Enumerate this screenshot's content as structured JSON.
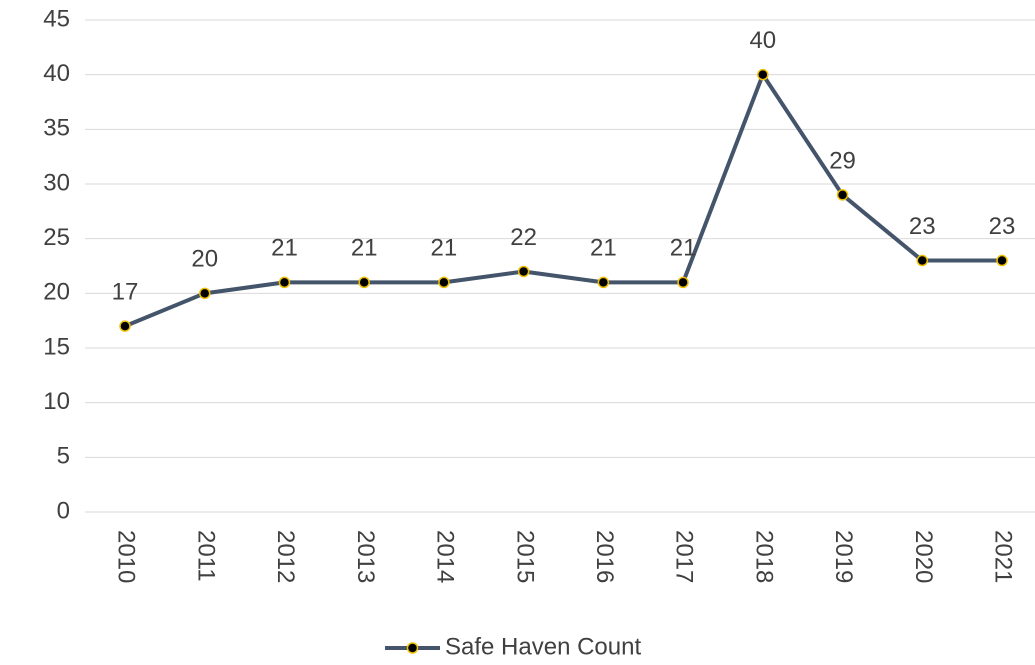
{
  "chart_data": {
    "type": "line",
    "categories": [
      "2010",
      "2011",
      "2012",
      "2013",
      "2014",
      "2015",
      "2016",
      "2017",
      "2018",
      "2019",
      "2020",
      "2021"
    ],
    "series": [
      {
        "name": "Safe Haven Count",
        "color": "#44546a",
        "marker_fill": "#000000",
        "marker_edge": "#f0c000",
        "values": [
          17,
          20,
          21,
          21,
          21,
          22,
          21,
          21,
          40,
          29,
          23,
          23
        ]
      }
    ],
    "ylim": [
      0,
      45
    ],
    "yticks": [
      0,
      5,
      10,
      15,
      20,
      25,
      30,
      35,
      40,
      45
    ],
    "grid": true,
    "legend": "bottom"
  }
}
